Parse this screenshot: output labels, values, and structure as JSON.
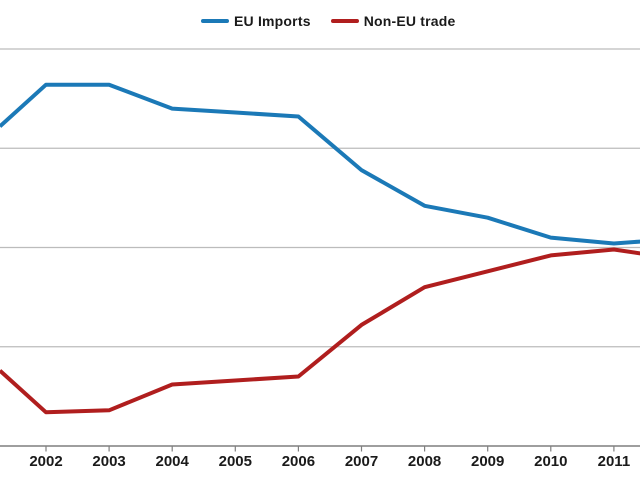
{
  "page": {
    "background": "#ffffff"
  },
  "legend": {
    "position": "top",
    "items": [
      {
        "label": "EU Imports",
        "color": "#1B79B7"
      },
      {
        "label": "Non-EU trade",
        "color": "#B01E1E"
      }
    ]
  },
  "chart_data": {
    "type": "line",
    "x": [
      2001.27,
      2002,
      2003,
      2004,
      2005,
      2006,
      2007,
      2008,
      2009,
      2010,
      2011,
      2011.43
    ],
    "x_note": "first and last x are points where the lines are cut by the cropped chart edges",
    "series": [
      {
        "name": "EU Imports",
        "color": "#1B79B7",
        "values": [
          80.5,
          91,
          91,
          85,
          84,
          83,
          69.5,
          60.5,
          57.5,
          52.5,
          51,
          51.5
        ]
      },
      {
        "name": "Non-EU trade",
        "color": "#B01E1E",
        "values": [
          19,
          8.5,
          9,
          15.5,
          16.5,
          17.5,
          30.5,
          40,
          44,
          48,
          49.5,
          48.5
        ]
      }
    ],
    "x_tick_labels": [
      "2002",
      "2003",
      "2004",
      "2005",
      "2006",
      "2007",
      "2008",
      "2009",
      "2010",
      "2011"
    ],
    "title": "",
    "xlabel": "",
    "ylabel": "",
    "ylim": [
      0,
      100
    ],
    "y_axis_labels_visible": false,
    "values_are_estimated_percent_shares": true,
    "gridline_values": [
      25,
      50,
      75,
      100
    ],
    "grid": "horizontal",
    "legend_position": "top-center",
    "line_width": 4,
    "axis_color": "#7f7f7f",
    "gridline_color": "#bcbcbc",
    "tick_label_color": "#1a1a1a"
  }
}
